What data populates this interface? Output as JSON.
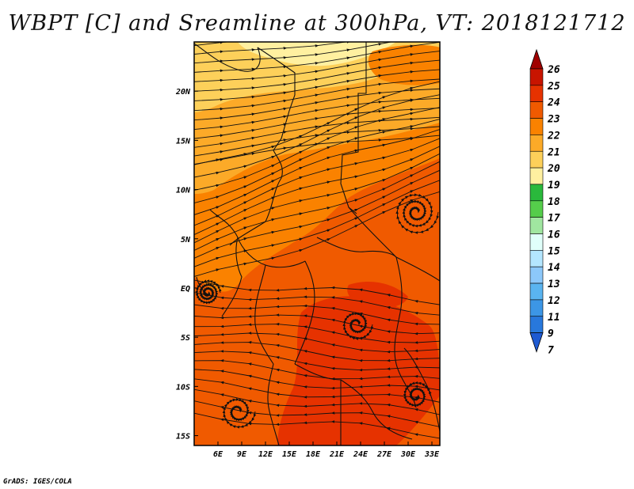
{
  "title": "WBPT [C] and Sreamline at 300hPa, VT: 2018121712",
  "credit": "GrADS: IGES/COLA",
  "map": {
    "lon_range": [
      3,
      34
    ],
    "lat_range": [
      -16,
      25
    ],
    "lon_ticks": [
      "6E",
      "9E",
      "12E",
      "15E",
      "18E",
      "21E",
      "24E",
      "27E",
      "30E",
      "33E"
    ],
    "lat_ticks": [
      "20N",
      "15N",
      "10N",
      "5N",
      "EQ",
      "5S",
      "10S",
      "15S"
    ]
  },
  "colorbar": {
    "levels": [
      "26",
      "25",
      "24",
      "23",
      "22",
      "21",
      "20",
      "19",
      "18",
      "17",
      "16",
      "15",
      "14",
      "13",
      "12",
      "11",
      "9",
      "7"
    ],
    "colors": [
      "#a00000",
      "#c81400",
      "#e63200",
      "#f05a00",
      "#fa8200",
      "#fcaa28",
      "#fdd05a",
      "#fff0a0",
      "#2ab93c",
      "#55cd4b",
      "#a0e6a0",
      "#e0fffa",
      "#b4e6ff",
      "#8cc8fa",
      "#5ab4f0",
      "#3c96e6",
      "#2878dc",
      "#1e5ad2"
    ]
  }
}
